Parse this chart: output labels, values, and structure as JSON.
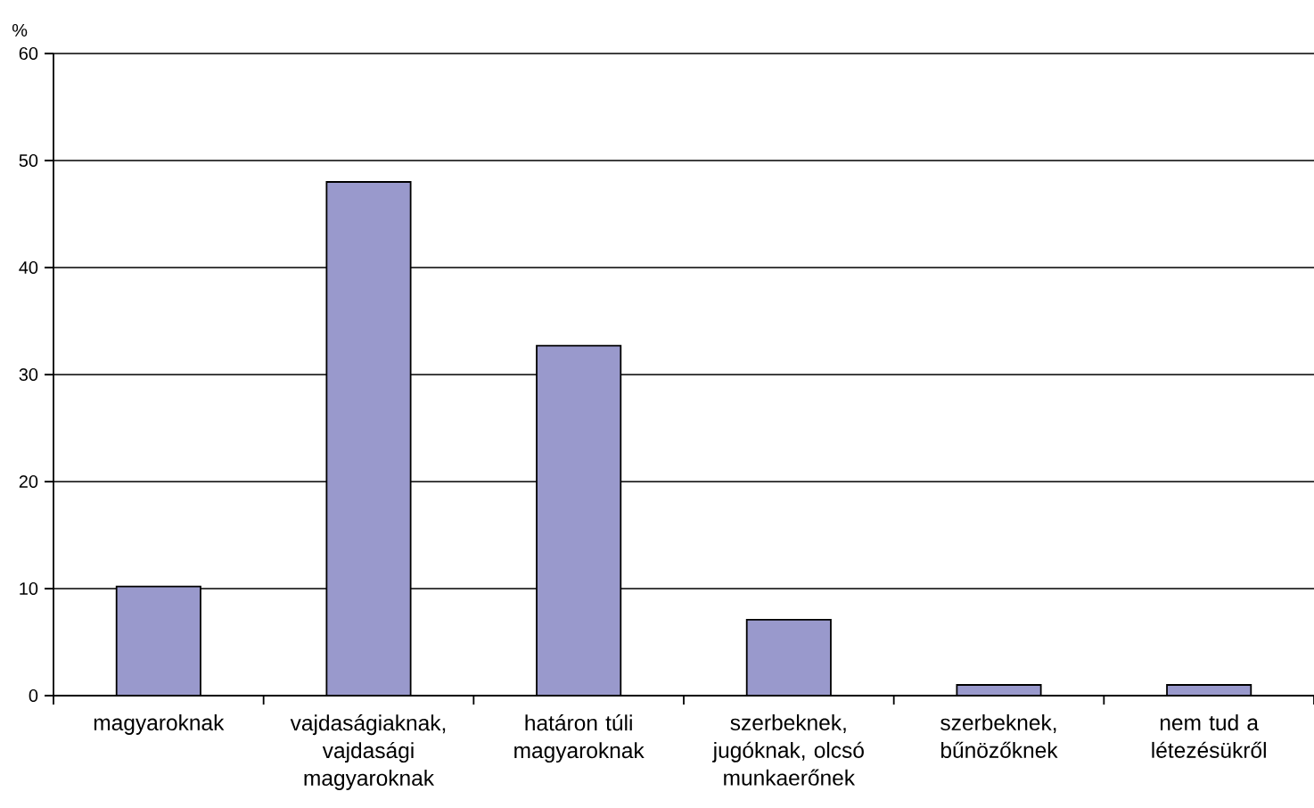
{
  "chart_data": {
    "type": "bar",
    "ylabel": "%",
    "categories": [
      "magyaroknak",
      "vajdaságiaknak, vajdasági magyaroknak",
      "határon túli magyaroknak",
      "szerbeknek, jugóknak, olcsó munkaerőnek",
      "szerbeknek, bűnözőknek",
      "nem tud a létezésükről"
    ],
    "values": [
      10.2,
      48,
      32.7,
      7.1,
      1,
      1
    ],
    "color": "#9999cc",
    "ylim": [
      0,
      60
    ],
    "yticks": [
      0,
      10,
      20,
      30,
      40,
      50,
      60
    ],
    "grid": "y"
  }
}
